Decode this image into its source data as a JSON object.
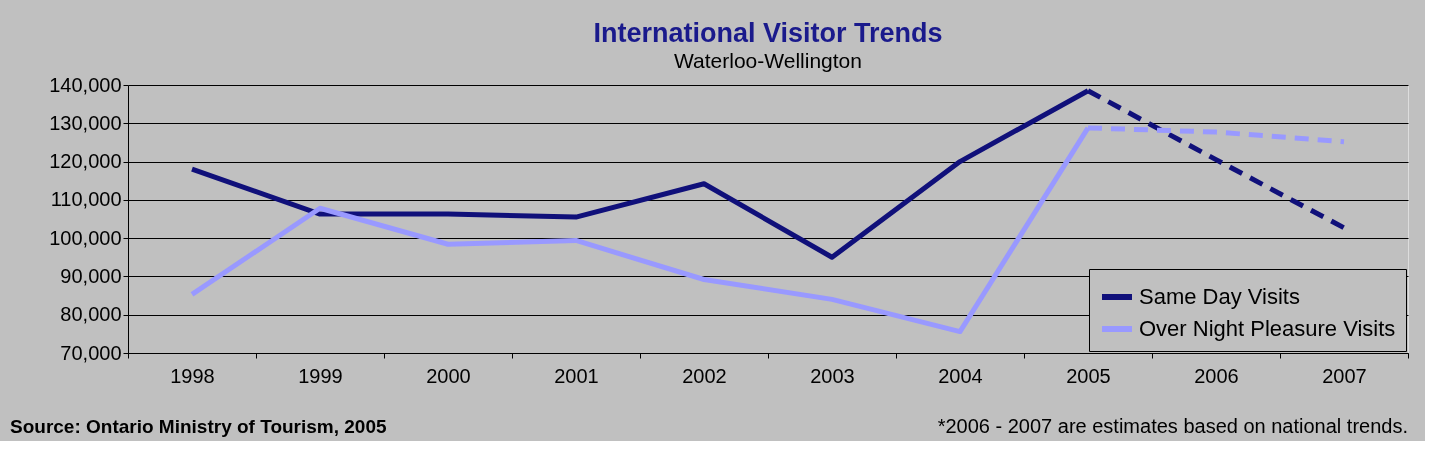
{
  "chart_data": {
    "type": "line",
    "title": "International Visitor Trends",
    "subtitle": "Waterloo-Wellington",
    "categories": [
      "1998",
      "1999",
      "2000",
      "2001",
      "2002",
      "2003",
      "2004",
      "2005",
      "2006",
      "2007"
    ],
    "series": [
      {
        "name": "Same Day Visits",
        "color": "#10107a",
        "line_style": "solid",
        "values": [
          118000,
          106300,
          106300,
          105500,
          114200,
          95000,
          120000,
          138500,
          null,
          null
        ]
      },
      {
        "name": "Over Night Pleasure Visits",
        "color": "#9999ff",
        "line_style": "solid",
        "values": [
          85300,
          107800,
          98400,
          99400,
          89200,
          84000,
          75600,
          128800,
          null,
          null
        ]
      },
      {
        "color": "#10107a",
        "line_style": "dashed",
        "values": [
          null,
          null,
          null,
          null,
          null,
          null,
          null,
          138500,
          120500,
          102700
        ]
      },
      {
        "color": "#9999ff",
        "line_style": "dashed",
        "values": [
          null,
          null,
          null,
          null,
          null,
          null,
          null,
          128800,
          127700,
          125200
        ]
      }
    ],
    "ylim": [
      70000,
      140000
    ],
    "yticks": [
      {
        "value": 70000,
        "label": "70,000"
      },
      {
        "value": 80000,
        "label": "80,000"
      },
      {
        "value": 90000,
        "label": "90,000"
      },
      {
        "value": 100000,
        "label": "100,000"
      },
      {
        "value": 110000,
        "label": "110,000"
      },
      {
        "value": 120000,
        "label": "120,000"
      },
      {
        "value": 130000,
        "label": "130,000"
      },
      {
        "value": 140000,
        "label": "140,000"
      }
    ],
    "grid": "y",
    "legend": "bottom right",
    "marker": "none",
    "annotations": [
      "Source: Ontario Ministry of Tourism, 2005",
      "*2006 - 2007 are estimates based on national trends."
    ]
  }
}
